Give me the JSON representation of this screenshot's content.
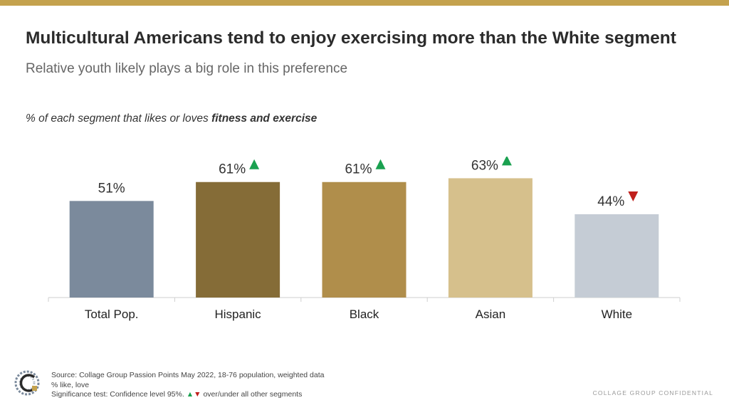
{
  "header": {
    "title": "Multicultural Americans tend to enjoy exercising more than the White segment",
    "subtitle": "Relative youth likely plays a big role in this preference",
    "caption_prefix": "% of each segment that likes or loves ",
    "caption_emphasis": "fitness and exercise"
  },
  "chart_data": {
    "type": "bar",
    "categories": [
      "Total Pop.",
      "Hispanic",
      "Black",
      "Asian",
      "White"
    ],
    "values": [
      51,
      61,
      61,
      63,
      44
    ],
    "value_labels": [
      "51%",
      "61%",
      "61%",
      "63%",
      "44%"
    ],
    "significance": [
      "none",
      "up",
      "up",
      "up",
      "down"
    ],
    "colors": [
      "#7b8a9c",
      "#856c37",
      "#b08e4b",
      "#d6c08c",
      "#c5ccd5"
    ],
    "up_color": "#1aa150",
    "down_color": "#c0201c",
    "ylim": [
      0,
      100
    ],
    "grid": false,
    "legend": "none"
  },
  "footer": {
    "source": "Source: Collage Group Passion Points May 2022, 18-76 population, weighted data",
    "base": "% like, love",
    "sig_prefix": "Significance test: Confidence level 95%.",
    "sig_suffix": "over/under all other segments",
    "up_glyph": "▲",
    "down_glyph": "▼",
    "confidential": "COLLAGE GROUP CONFIDENTIAL"
  }
}
